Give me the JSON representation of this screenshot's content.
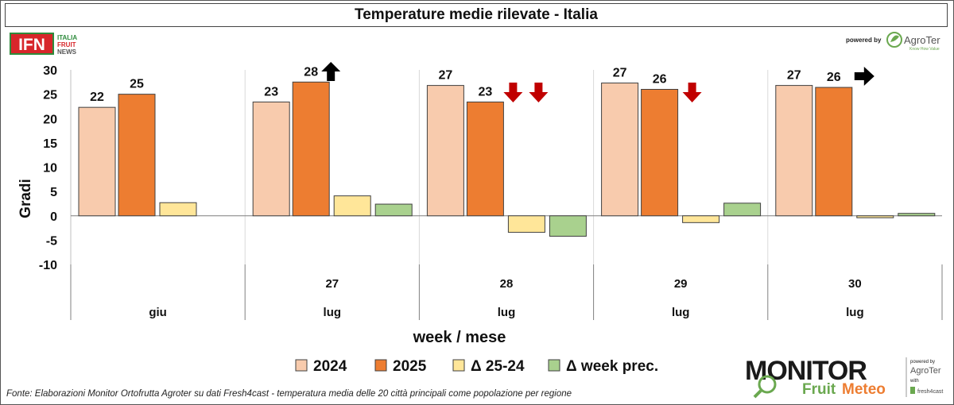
{
  "header": {
    "title": "Temperature medie rilevate - Italia"
  },
  "ifn_logo": {
    "mark": "IFN",
    "line1": "ITALIA",
    "line2": "FRUIT",
    "line3": "NEWS"
  },
  "powered_by": {
    "label": "powered by",
    "brand": "AgroTer",
    "tagline": "Know How Value"
  },
  "monitor_logo": {
    "word1": "MONITOR",
    "word2a": "Fruit",
    "word2b": "Meteo",
    "side1": "powered by",
    "side2": "AgroTer",
    "side3": "with",
    "side4": "fresh4cast"
  },
  "source_note": "Fonte: Elaborazioni Monitor Ortofrutta Agroter su dati Fresh4cast - temperatura media delle 20 città principali come popolazione per regione",
  "colors": {
    "s2024": "#F8CBAD",
    "s2025": "#ED7D31",
    "sdelta": "#FFE699",
    "sweek": "#A9D18E",
    "arrow_up": "#000000",
    "arrow_down": "#C00000",
    "arrow_right": "#000000"
  },
  "chart_data": {
    "type": "bar",
    "ylabel": "Gradi",
    "xlabel": "week / mese",
    "ylim": [
      -10,
      30
    ],
    "yticks": [
      -10,
      -5,
      0,
      5,
      10,
      15,
      20,
      25,
      30
    ],
    "categories": [
      {
        "week": "",
        "month": "giu"
      },
      {
        "week": "27",
        "month": "lug"
      },
      {
        "week": "28",
        "month": "lug"
      },
      {
        "week": "29",
        "month": "lug"
      },
      {
        "week": "30",
        "month": "lug"
      }
    ],
    "series": [
      {
        "name": "2024",
        "color": "#F8CBAD",
        "values": [
          22.3,
          23.4,
          26.8,
          27.3,
          26.8
        ],
        "labels": [
          "22",
          "23",
          "27",
          "27",
          "27"
        ]
      },
      {
        "name": "2025",
        "color": "#ED7D31",
        "values": [
          25.0,
          27.5,
          23.4,
          26.0,
          26.4
        ],
        "labels": [
          "25",
          "28",
          "23",
          "26",
          "26"
        ]
      },
      {
        "name": "Δ 25-24",
        "color": "#FFE699",
        "values": [
          2.7,
          4.1,
          -3.4,
          -1.4,
          -0.4
        ]
      },
      {
        "name": "Δ week prec.",
        "color": "#A9D18E",
        "values": [
          null,
          2.4,
          -4.2,
          2.6,
          0.5
        ]
      }
    ],
    "trend_arrows": [
      [
        "none"
      ],
      [
        "up"
      ],
      [
        "down",
        "down"
      ],
      [
        "down"
      ],
      [
        "right"
      ]
    ],
    "legend": "bottom"
  }
}
